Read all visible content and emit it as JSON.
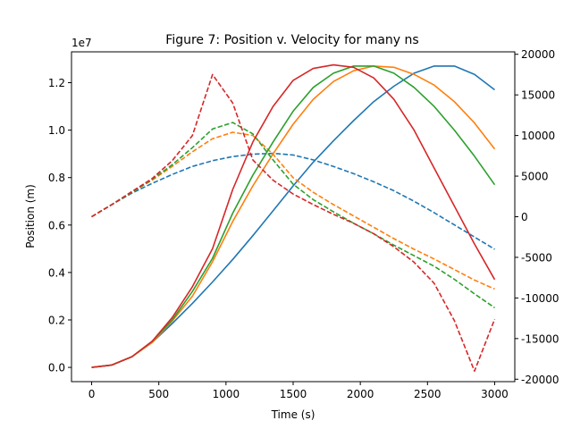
{
  "chart_data": {
    "type": "line",
    "title": "Figure 7: Position v. Velocity for many ns",
    "xlabel": "Time (s)",
    "ylabel": "Position (m)",
    "y2label": "",
    "y_offset_label": "1e7",
    "xlim": [
      -150,
      3150
    ],
    "ylim": [
      -600000.0,
      13300000.0
    ],
    "y2lim": [
      -20300,
      20300
    ],
    "x_ticks": [
      0,
      500,
      1000,
      1500,
      2000,
      2500,
      3000
    ],
    "y_ticks": [
      0,
      2000000,
      4000000,
      6000000,
      8000000,
      10000000,
      12000000
    ],
    "y_tick_labels": [
      "0.0",
      "0.2",
      "0.4",
      "0.6",
      "0.8",
      "1.0",
      "1.2"
    ],
    "y2_ticks": [
      -20000,
      -15000,
      -10000,
      -5000,
      0,
      5000,
      10000,
      15000,
      20000
    ],
    "grid": false,
    "legend": "none",
    "x": [
      0,
      150,
      300,
      450,
      600,
      750,
      900,
      1050,
      1200,
      1350,
      1500,
      1650,
      1800,
      1950,
      2100,
      2250,
      2400,
      2550,
      2700,
      2850,
      3000
    ],
    "series": [
      {
        "color": "#1f77b4",
        "axis": "left",
        "style": "solid",
        "values": [
          0,
          100000,
          450000,
          1050000,
          1850000,
          2700000,
          3600000,
          4550000,
          5550000,
          6600000,
          7650000,
          8650000,
          9550000,
          10400000,
          11200000,
          11850000,
          12400000,
          12700000,
          12700000,
          12350000,
          11700000
        ]
      },
      {
        "color": "#1f77b4",
        "axis": "right",
        "style": "dashed",
        "values": [
          0,
          1500,
          2900,
          4100,
          5200,
          6200,
          6900,
          7400,
          7700,
          7800,
          7600,
          7000,
          6200,
          5300,
          4300,
          3200,
          1900,
          500,
          -1000,
          -2500,
          -4000
        ]
      },
      {
        "color": "#ff7f0e",
        "axis": "left",
        "style": "solid",
        "values": [
          0,
          100000,
          450000,
          1050000,
          1950000,
          3000000,
          4450000,
          6150000,
          7650000,
          9000000,
          10250000,
          11300000,
          12050000,
          12500000,
          12700000,
          12650000,
          12350000,
          11900000,
          11200000,
          10300000,
          9200000
        ]
      },
      {
        "color": "#ff7f0e",
        "axis": "right",
        "style": "dashed",
        "values": [
          0,
          1500,
          3000,
          4500,
          6200,
          8000,
          9600,
          10400,
          10000,
          7700,
          4800,
          3000,
          1500,
          100,
          -1300,
          -2700,
          -4000,
          -5200,
          -6500,
          -7800,
          -8900
        ]
      },
      {
        "color": "#2ca02c",
        "axis": "left",
        "style": "solid",
        "values": [
          0,
          100000,
          450000,
          1100000,
          2000000,
          3200000,
          4600000,
          6500000,
          8100000,
          9500000,
          10800000,
          11800000,
          12400000,
          12700000,
          12700000,
          12400000,
          11800000,
          11000000,
          10000000,
          8900000,
          7700000
        ]
      },
      {
        "color": "#2ca02c",
        "axis": "right",
        "style": "dashed",
        "values": [
          0,
          1500,
          3000,
          4600,
          6400,
          8500,
          10800,
          11600,
          10200,
          7000,
          4000,
          2100,
          600,
          -800,
          -2100,
          -3500,
          -4800,
          -6100,
          -7700,
          -9500,
          -11200
        ]
      },
      {
        "color": "#d62728",
        "axis": "left",
        "style": "solid",
        "values": [
          0,
          100000,
          450000,
          1100000,
          2100000,
          3400000,
          5000000,
          7500000,
          9500000,
          11000000,
          12100000,
          12600000,
          12750000,
          12650000,
          12200000,
          11300000,
          10000000,
          8400000,
          6800000,
          5200000,
          3700000
        ]
      },
      {
        "color": "#d62728",
        "axis": "right",
        "style": "dashed",
        "values": [
          0,
          1500,
          3100,
          4700,
          6900,
          10000,
          17500,
          14000,
          7000,
          4500,
          2800,
          1500,
          300,
          -800,
          -2100,
          -3700,
          -5600,
          -8200,
          -12800,
          -19000,
          -12600
        ]
      }
    ]
  }
}
